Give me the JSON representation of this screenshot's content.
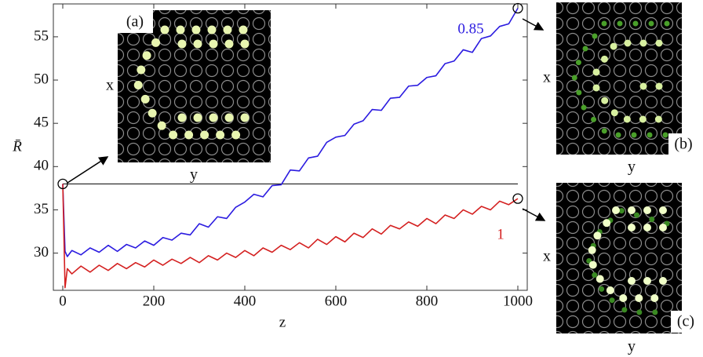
{
  "chart_data": {
    "type": "line",
    "x_label": "z",
    "y_label": "R̄",
    "x": [
      0,
      5,
      10,
      20,
      40,
      60,
      80,
      100,
      120,
      140,
      160,
      180,
      200,
      220,
      240,
      260,
      280,
      300,
      320,
      340,
      360,
      380,
      400,
      420,
      440,
      460,
      480,
      500,
      520,
      540,
      560,
      580,
      600,
      620,
      640,
      660,
      680,
      700,
      720,
      740,
      760,
      780,
      800,
      820,
      840,
      860,
      880,
      900,
      920,
      940,
      960,
      980,
      1000
    ],
    "series": [
      {
        "name": "0.85",
        "color": "#2b1be0",
        "values": [
          38.0,
          30.2,
          29.6,
          30.3,
          29.8,
          30.6,
          30.1,
          30.9,
          30.2,
          31.0,
          30.6,
          31.4,
          30.9,
          31.8,
          31.5,
          32.3,
          32.1,
          33.4,
          33.0,
          34.2,
          34.0,
          35.3,
          35.9,
          36.8,
          36.5,
          37.8,
          37.9,
          39.6,
          39.5,
          41.0,
          41.2,
          42.8,
          43.4,
          43.6,
          44.9,
          45.3,
          46.6,
          46.5,
          47.9,
          48.0,
          49.3,
          49.4,
          50.3,
          50.5,
          51.9,
          52.2,
          53.5,
          53.2,
          54.8,
          55.1,
          56.2,
          56.5,
          58.3
        ]
      },
      {
        "name": "1",
        "color": "#d42020",
        "values": [
          38.0,
          26.0,
          28.2,
          27.6,
          28.5,
          27.8,
          28.6,
          28.0,
          28.8,
          28.2,
          28.9,
          28.4,
          29.2,
          28.6,
          29.3,
          28.8,
          29.5,
          28.9,
          29.7,
          29.2,
          30.0,
          29.5,
          30.3,
          29.7,
          30.6,
          30.1,
          30.9,
          30.4,
          31.2,
          30.6,
          31.6,
          31.0,
          31.9,
          31.3,
          32.3,
          31.8,
          32.8,
          32.2,
          33.2,
          32.8,
          33.6,
          33.1,
          34.0,
          33.4,
          34.4,
          34.0,
          35.0,
          34.5,
          35.4,
          35.0,
          36.0,
          35.6,
          36.3
        ]
      }
    ],
    "hline": 38,
    "xlim": [
      -20.7,
      1020.7
    ],
    "ylim": [
      25.7,
      58.8
    ],
    "xticks": [
      0,
      200,
      400,
      600,
      800,
      1000
    ],
    "yticks": [
      30,
      35,
      40,
      45,
      50,
      55
    ],
    "insets": [
      {
        "label": "(a)",
        "x_label": "x",
        "y_label": "y"
      },
      {
        "label": "(b)",
        "x_label": "x",
        "y_label": "y"
      },
      {
        "label": "(c)",
        "x_label": "x",
        "y_label": "y"
      }
    ]
  }
}
